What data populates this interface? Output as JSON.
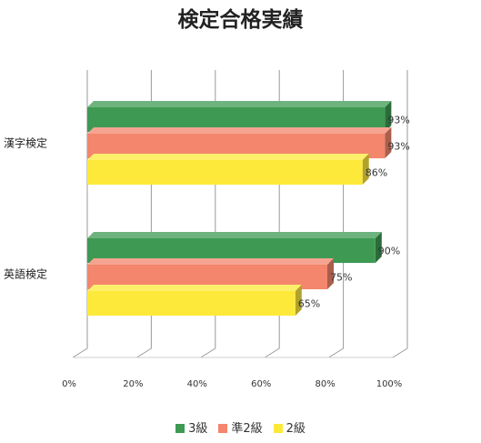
{
  "chart_data": {
    "type": "bar",
    "orientation": "horizontal",
    "title": "検定合格実績",
    "categories": [
      "漢字検定",
      "英語検定"
    ],
    "series": [
      {
        "name": "3級",
        "values": [
          93,
          90
        ],
        "labels": [
          "93%",
          "90%"
        ],
        "color": "#3e9a53"
      },
      {
        "name": "準2級",
        "values": [
          93,
          75
        ],
        "labels": [
          "93%",
          "75%"
        ],
        "color": "#f3866c"
      },
      {
        "name": "2級",
        "values": [
          86,
          65
        ],
        "labels": [
          "86%",
          "65%"
        ],
        "color": "#fde93a"
      }
    ],
    "xlim": [
      0,
      100
    ],
    "xticks": [
      "0%",
      "20%",
      "40%",
      "60%",
      "80%",
      "100%"
    ],
    "grid": true,
    "legend": "bottom"
  }
}
